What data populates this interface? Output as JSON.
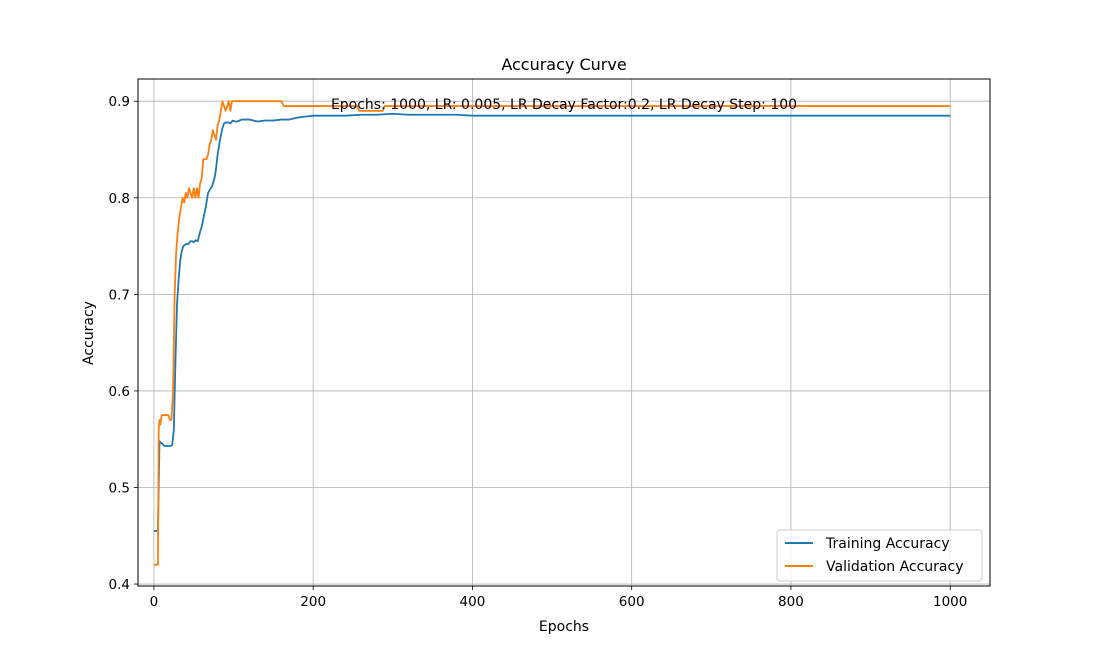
{
  "chart_data": {
    "type": "line",
    "title": "Accuracy Curve",
    "xlabel": "Epochs",
    "ylabel": "Accuracy",
    "xlim": [
      -20,
      1050
    ],
    "ylim": [
      0.398,
      0.923
    ],
    "xticks": [
      0,
      200,
      400,
      600,
      800,
      1000
    ],
    "yticks": [
      0.4,
      0.5,
      0.6,
      0.7,
      0.8,
      0.9
    ],
    "grid": true,
    "legend_position": "lower-right",
    "annotation": "Epochs: 1000, LR: 0.005, LR Decay Factor:0.2, LR Decay Step: 100",
    "series": [
      {
        "name": "Training Accuracy",
        "color": "#1f77b4",
        "x": [
          0,
          3,
          5,
          7,
          9,
          11,
          13,
          15,
          18,
          21,
          23,
          25,
          27,
          29,
          31,
          33,
          35,
          37,
          40,
          43,
          46,
          48,
          50,
          52,
          55,
          58,
          60,
          62,
          65,
          68,
          70,
          73,
          76,
          78,
          80,
          83,
          86,
          88,
          90,
          93,
          96,
          99,
          102,
          105,
          110,
          120,
          130,
          140,
          150,
          160,
          170,
          180,
          190,
          200,
          220,
          240,
          260,
          280,
          300,
          320,
          340,
          360,
          380,
          400,
          450,
          500,
          550,
          600,
          650,
          700,
          750,
          800,
          850,
          900,
          950,
          1000
        ],
        "y": [
          0.455,
          0.455,
          0.455,
          0.548,
          0.546,
          0.545,
          0.543,
          0.543,
          0.543,
          0.543,
          0.544,
          0.56,
          0.63,
          0.69,
          0.715,
          0.735,
          0.745,
          0.75,
          0.752,
          0.752,
          0.755,
          0.755,
          0.754,
          0.756,
          0.755,
          0.765,
          0.77,
          0.778,
          0.79,
          0.805,
          0.808,
          0.812,
          0.82,
          0.83,
          0.845,
          0.86,
          0.872,
          0.877,
          0.878,
          0.878,
          0.877,
          0.88,
          0.879,
          0.879,
          0.881,
          0.881,
          0.879,
          0.88,
          0.88,
          0.881,
          0.881,
          0.883,
          0.884,
          0.885,
          0.885,
          0.885,
          0.886,
          0.886,
          0.887,
          0.886,
          0.886,
          0.886,
          0.886,
          0.885,
          0.885,
          0.885,
          0.885,
          0.885,
          0.885,
          0.885,
          0.885,
          0.885,
          0.885,
          0.885,
          0.885,
          0.885
        ]
      },
      {
        "name": "Validation Accuracy",
        "color": "#ff7f0e",
        "x": [
          0,
          2,
          4,
          5,
          6,
          7,
          8,
          10,
          12,
          15,
          18,
          20,
          22,
          24,
          26,
          28,
          30,
          32,
          34,
          36,
          38,
          40,
          42,
          44,
          46,
          48,
          50,
          52,
          54,
          56,
          58,
          60,
          62,
          64,
          66,
          68,
          70,
          72,
          74,
          76,
          78,
          80,
          82,
          84,
          86,
          88,
          90,
          92,
          94,
          96,
          98,
          100,
          105,
          110,
          120,
          130,
          140,
          150,
          160,
          163,
          170,
          180,
          200,
          220,
          240,
          255,
          258,
          270,
          280,
          287,
          290,
          300,
          350,
          400,
          450,
          500,
          600,
          700,
          800,
          900,
          1000
        ],
        "y": [
          0.42,
          0.42,
          0.42,
          0.42,
          0.56,
          0.57,
          0.565,
          0.575,
          0.575,
          0.575,
          0.575,
          0.57,
          0.57,
          0.6,
          0.7,
          0.745,
          0.765,
          0.78,
          0.79,
          0.8,
          0.795,
          0.805,
          0.8,
          0.81,
          0.805,
          0.8,
          0.81,
          0.8,
          0.81,
          0.8,
          0.815,
          0.82,
          0.84,
          0.84,
          0.84,
          0.845,
          0.855,
          0.86,
          0.87,
          0.865,
          0.86,
          0.875,
          0.88,
          0.89,
          0.9,
          0.895,
          0.89,
          0.895,
          0.9,
          0.89,
          0.9,
          0.9,
          0.9,
          0.9,
          0.9,
          0.9,
          0.9,
          0.9,
          0.9,
          0.895,
          0.895,
          0.895,
          0.895,
          0.895,
          0.895,
          0.895,
          0.89,
          0.89,
          0.89,
          0.89,
          0.895,
          0.895,
          0.895,
          0.895,
          0.895,
          0.895,
          0.895,
          0.895,
          0.895,
          0.895,
          0.895
        ]
      }
    ]
  }
}
